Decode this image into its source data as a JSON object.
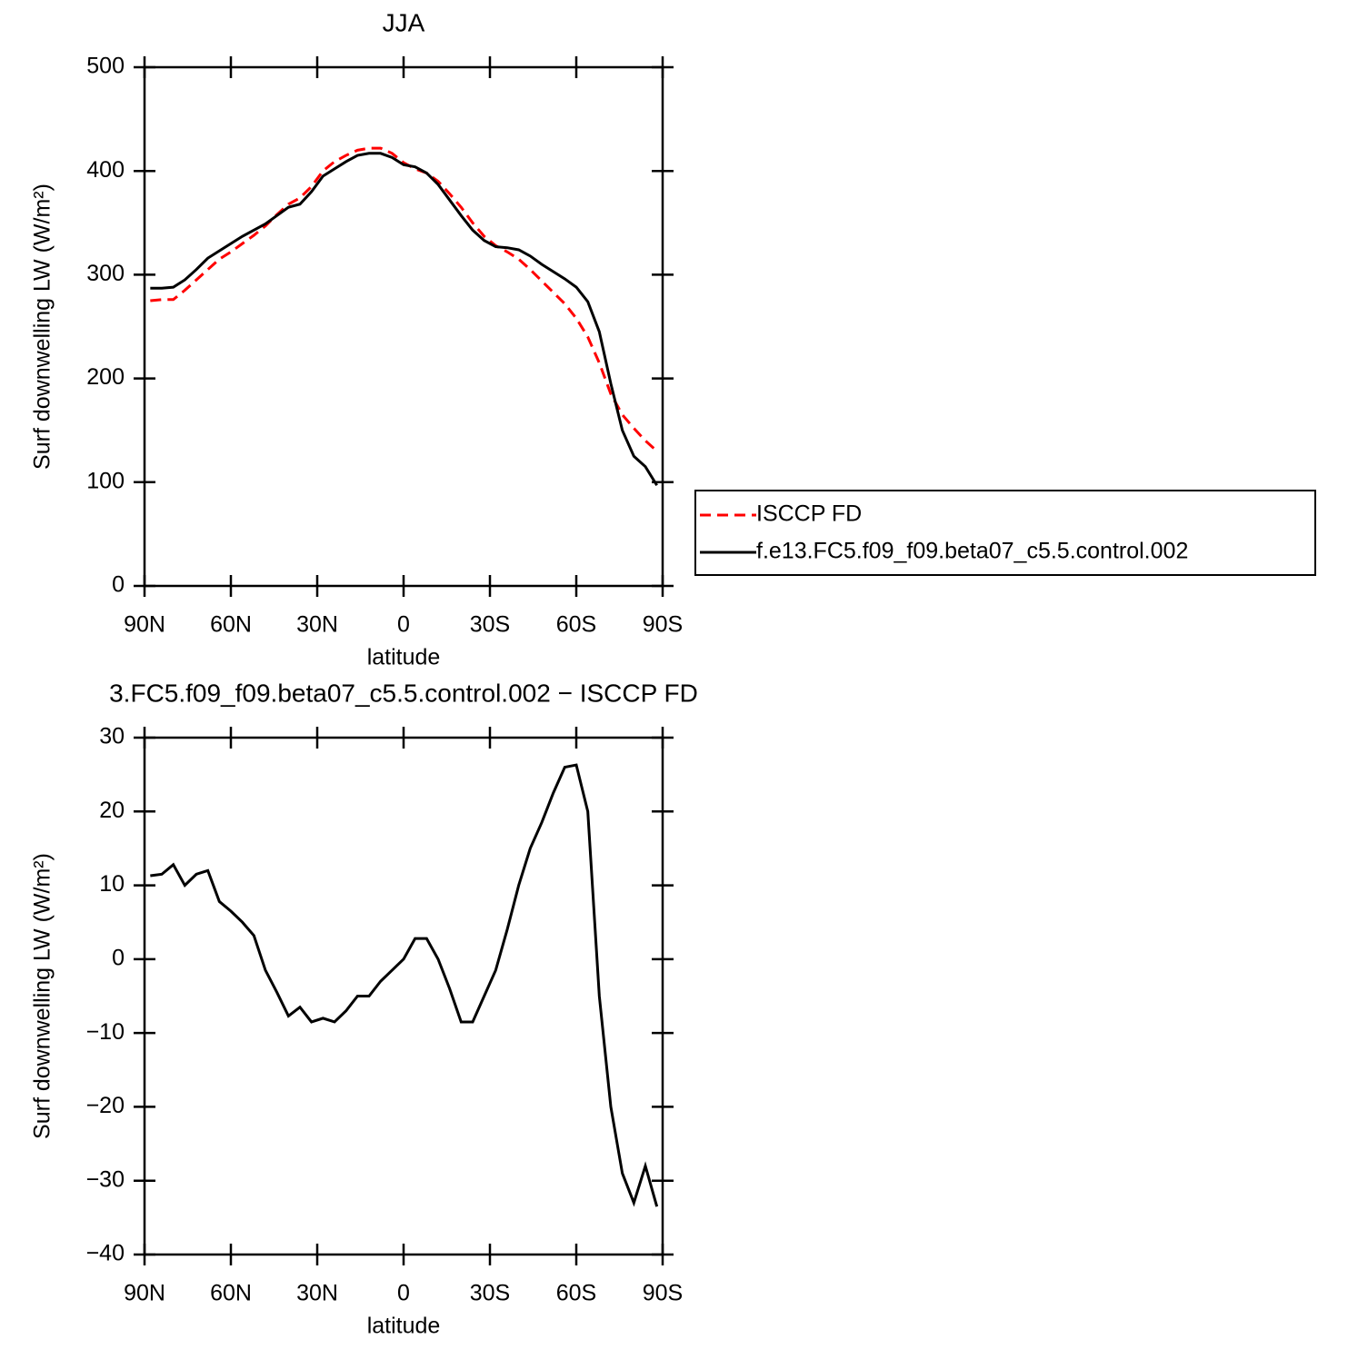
{
  "chart_data": [
    {
      "type": "line",
      "title": "JJA",
      "x_label": "latitude",
      "y_label": "Surf downwelling LW (W/m²)",
      "x": [
        88,
        84,
        80,
        76,
        72,
        68,
        64,
        60,
        56,
        52,
        48,
        44,
        40,
        36,
        32,
        28,
        24,
        20,
        16,
        12,
        8,
        4,
        0,
        -4,
        -8,
        -12,
        -16,
        -20,
        -24,
        -28,
        -32,
        -36,
        -40,
        -44,
        -48,
        -52,
        -56,
        -60,
        -64,
        -68,
        -72,
        -76,
        -80,
        -84,
        -88
      ],
      "series": [
        {
          "name": "ISCCP FD",
          "color": "#ff0000",
          "style": "dashed",
          "values": [
            275,
            276,
            276,
            285,
            295,
            305,
            315,
            322,
            330,
            338,
            347,
            358,
            368,
            374,
            385,
            400,
            409,
            415,
            420,
            422,
            422,
            417,
            408,
            402,
            398,
            390,
            378,
            365,
            350,
            337,
            328,
            322,
            315,
            305,
            294,
            283,
            272,
            258,
            240,
            215,
            185,
            165,
            152,
            140,
            130
          ]
        },
        {
          "name": "f.e13.FC5.f09_f09.beta07_c5.5.control.002",
          "color": "#000000",
          "style": "solid",
          "values": [
            287,
            287,
            288,
            295,
            305,
            316,
            323,
            330,
            337,
            343,
            349,
            357,
            365,
            368,
            380,
            395,
            402,
            409,
            415,
            417,
            417,
            413,
            406,
            404,
            398,
            387,
            372,
            357,
            343,
            333,
            327,
            326,
            324,
            318,
            310,
            303,
            296,
            288,
            274,
            245,
            195,
            150,
            125,
            115,
            97
          ]
        }
      ],
      "xlim": [
        90,
        -90
      ],
      "xticks": [
        {
          "value": 90,
          "label": "90N"
        },
        {
          "value": 60,
          "label": "60N"
        },
        {
          "value": 30,
          "label": "30N"
        },
        0,
        {
          "value": -30,
          "label": "30S"
        },
        {
          "value": -60,
          "label": "60S"
        },
        {
          "value": -90,
          "label": "90S"
        }
      ],
      "ylim": [
        0,
        500
      ],
      "yticks": [
        0,
        100,
        200,
        300,
        400,
        500
      ],
      "legend": "right"
    },
    {
      "type": "line",
      "title": "3.FC5.f09_f09.beta07_c5.5.control.002 − ISCCP FD",
      "x_label": "latitude",
      "y_label": "Surf downwelling LW (W/m²)",
      "x": [
        88,
        84,
        80,
        76,
        72,
        68,
        64,
        60,
        56,
        52,
        48,
        44,
        40,
        36,
        32,
        28,
        24,
        20,
        16,
        12,
        8,
        4,
        0,
        -4,
        -8,
        -12,
        -16,
        -20,
        -24,
        -28,
        -32,
        -36,
        -40,
        -44,
        -48,
        -52,
        -56,
        -60,
        -64,
        -68,
        -72,
        -76,
        -80,
        -84,
        -88
      ],
      "series": [
        {
          "color": "#000000",
          "style": "solid",
          "values": [
            11.3,
            11.5,
            12.8,
            10,
            11.5,
            12,
            7.8,
            6.5,
            5,
            3.2,
            -1.5,
            -4.5,
            -7.7,
            -6.5,
            -8.5,
            -8,
            -8.5,
            -7,
            -5,
            -5,
            -3,
            -1.5,
            0,
            2.8,
            2.8,
            0,
            -4,
            -8.5,
            -8.5,
            -5,
            -1.5,
            4,
            10,
            15,
            18.5,
            22.5,
            26,
            26.3,
            20,
            -5,
            -20,
            -29,
            -33,
            -28,
            -33.5
          ]
        }
      ],
      "xlim": [
        90,
        -90
      ],
      "xticks": [
        {
          "value": 90,
          "label": "90N"
        },
        {
          "value": 60,
          "label": "60N"
        },
        {
          "value": 30,
          "label": "30N"
        },
        0,
        {
          "value": -30,
          "label": "30S"
        },
        {
          "value": -60,
          "label": "60S"
        },
        {
          "value": -90,
          "label": "90S"
        }
      ],
      "ylim": [
        -40,
        30
      ],
      "yticks": [
        {
          "value": -40,
          "label": "−40"
        },
        {
          "value": -30,
          "label": "−30"
        },
        {
          "value": -20,
          "label": "−20"
        },
        {
          "value": -10,
          "label": "−10"
        },
        0,
        10,
        20,
        30
      ]
    }
  ]
}
